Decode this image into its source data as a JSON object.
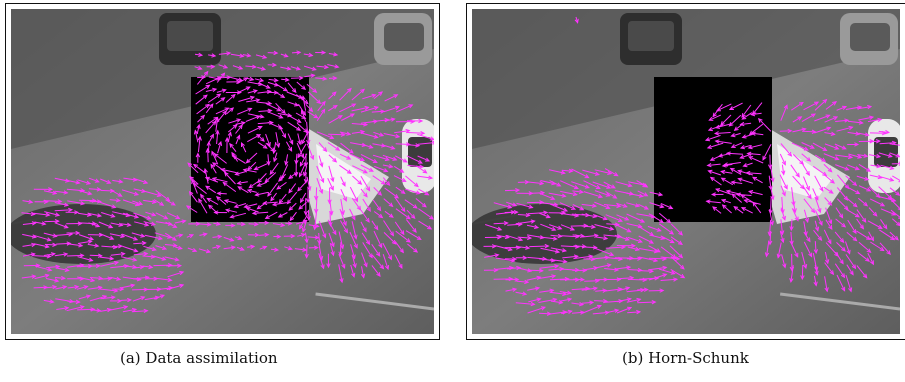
{
  "figures": [
    {
      "caption": "(a) Data assimilation",
      "occluder": "filled"
    },
    {
      "caption": "(b) Horn-Schunk",
      "occluder": "empty"
    }
  ],
  "colors": {
    "arrow": "#ff33ff",
    "occluder": "#000000",
    "frame": "#111111"
  }
}
